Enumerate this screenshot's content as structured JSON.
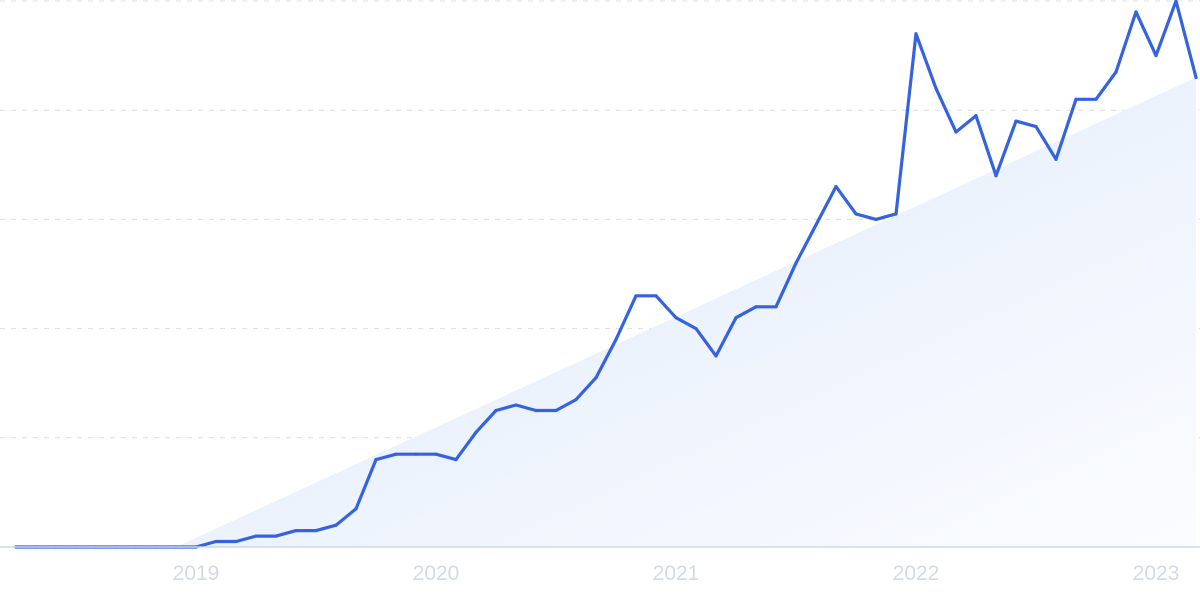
{
  "chart_data": {
    "type": "line",
    "title": "",
    "xlabel": "",
    "ylabel": "",
    "x_ticks": [
      "2019",
      "2020",
      "2021",
      "2022",
      "2023"
    ],
    "ylim": [
      0,
      100
    ],
    "grid": true,
    "legend": "none",
    "colors": {
      "line": "#3563e0",
      "trend_fill_top": "#e3eefb",
      "trend_fill_bottom": "#f9fbfe",
      "grid": "#d8dde6",
      "tick_text": "#d3dae6"
    },
    "series": [
      {
        "x": [
          "2018-04",
          "2018-05",
          "2018-06",
          "2018-07",
          "2018-08",
          "2018-09",
          "2018-10",
          "2018-11",
          "2018-12",
          "2019-01",
          "2019-02",
          "2019-03",
          "2019-04",
          "2019-05",
          "2019-06",
          "2019-07",
          "2019-08",
          "2019-09",
          "2019-10",
          "2019-11",
          "2019-12",
          "2020-01",
          "2020-02",
          "2020-03",
          "2020-04",
          "2020-05",
          "2020-06",
          "2020-07",
          "2020-08",
          "2020-09",
          "2020-10",
          "2020-11",
          "2020-12",
          "2021-01",
          "2021-02",
          "2021-03",
          "2021-04",
          "2021-05",
          "2021-06",
          "2021-07",
          "2021-08",
          "2021-09",
          "2021-10",
          "2021-11",
          "2021-12",
          "2022-01",
          "2022-02",
          "2022-03",
          "2022-04",
          "2022-05",
          "2022-06",
          "2022-07",
          "2022-08",
          "2022-09",
          "2022-10",
          "2022-11",
          "2022-12",
          "2023-01",
          "2023-02",
          "2023-03"
        ],
        "values": [
          0,
          0,
          0,
          0,
          0,
          0,
          0,
          0,
          0,
          0,
          1,
          1,
          2,
          2,
          3,
          3,
          4,
          7,
          16,
          17,
          17,
          17,
          16,
          21,
          25,
          26,
          25,
          25,
          27,
          31,
          38,
          46,
          46,
          42,
          40,
          35,
          42,
          44,
          44,
          52,
          59,
          66,
          61,
          60,
          61,
          94,
          84,
          76,
          79,
          68,
          78,
          77,
          71,
          82,
          82,
          87,
          98,
          90,
          100,
          86
        ]
      }
    ],
    "trend": {
      "start": "2018-12",
      "start_value": 0,
      "end": "2023-03",
      "end_value": 86
    }
  }
}
